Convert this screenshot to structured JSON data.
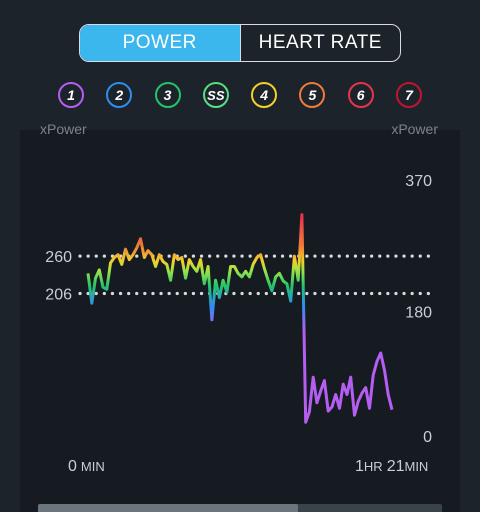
{
  "tabs": [
    {
      "label": "POWER",
      "active": true
    },
    {
      "label": "HEART RATE",
      "active": false
    }
  ],
  "zones": [
    {
      "label": "1",
      "color": "#b45ef2"
    },
    {
      "label": "2",
      "color": "#2f8df0"
    },
    {
      "label": "3",
      "color": "#22c46a"
    },
    {
      "label": "SS",
      "color": "#56e07f"
    },
    {
      "label": "4",
      "color": "#f2d12a"
    },
    {
      "label": "5",
      "color": "#f07b3a"
    },
    {
      "label": "6",
      "color": "#e8344a"
    },
    {
      "label": "7",
      "color": "#c0152f"
    }
  ],
  "chart": {
    "left_axis_title": "xPower",
    "right_axis_title": "xPower",
    "x_start": {
      "value": "0",
      "unit": "MIN"
    },
    "x_end": {
      "h_value": "1",
      "h_unit": "HR",
      "m_value": "21",
      "m_unit": "MIN"
    }
  },
  "chart_data": {
    "type": "line",
    "xlabel": "",
    "ylabel": "",
    "ylim": [
      0,
      370
    ],
    "xlim": [
      0,
      81
    ],
    "x_unit": "min",
    "right_ticks": [
      0,
      180,
      370
    ],
    "reference_lines": [
      260,
      206
    ],
    "series": [
      {
        "x": [
          0,
          1,
          2,
          3,
          4,
          5,
          6,
          7,
          8,
          9,
          10,
          11,
          12,
          13,
          14,
          15,
          16,
          17,
          18,
          19,
          20,
          21,
          22,
          23,
          24,
          25,
          26,
          27,
          28,
          29,
          30,
          31,
          32,
          33,
          34,
          35,
          36,
          37,
          38,
          39,
          40,
          41,
          42,
          43,
          44,
          45,
          46,
          47,
          48,
          49,
          50,
          51,
          52,
          53,
          54,
          55,
          56,
          57,
          58,
          59,
          60,
          61,
          62,
          63,
          64,
          65,
          66,
          67,
          68,
          69,
          70,
          71,
          72,
          73,
          74,
          75,
          76,
          77,
          78,
          79,
          80,
          81
        ],
        "values": [
          235,
          192,
          228,
          240,
          215,
          212,
          250,
          258,
          262,
          248,
          270,
          255,
          262,
          272,
          285,
          258,
          268,
          262,
          245,
          262,
          252,
          248,
          225,
          262,
          255,
          258,
          228,
          255,
          245,
          238,
          255,
          220,
          245,
          168,
          225,
          200,
          225,
          208,
          245,
          245,
          235,
          230,
          238,
          230,
          248,
          258,
          262,
          242,
          225,
          210,
          230,
          235,
          224,
          220,
          195,
          260,
          225,
          320,
          20,
          35,
          85,
          48,
          65,
          80,
          36,
          42,
          60,
          40,
          75,
          60,
          85,
          30,
          50,
          62,
          70,
          40,
          88,
          108,
          120,
          95,
          60,
          38
        ]
      }
    ]
  }
}
